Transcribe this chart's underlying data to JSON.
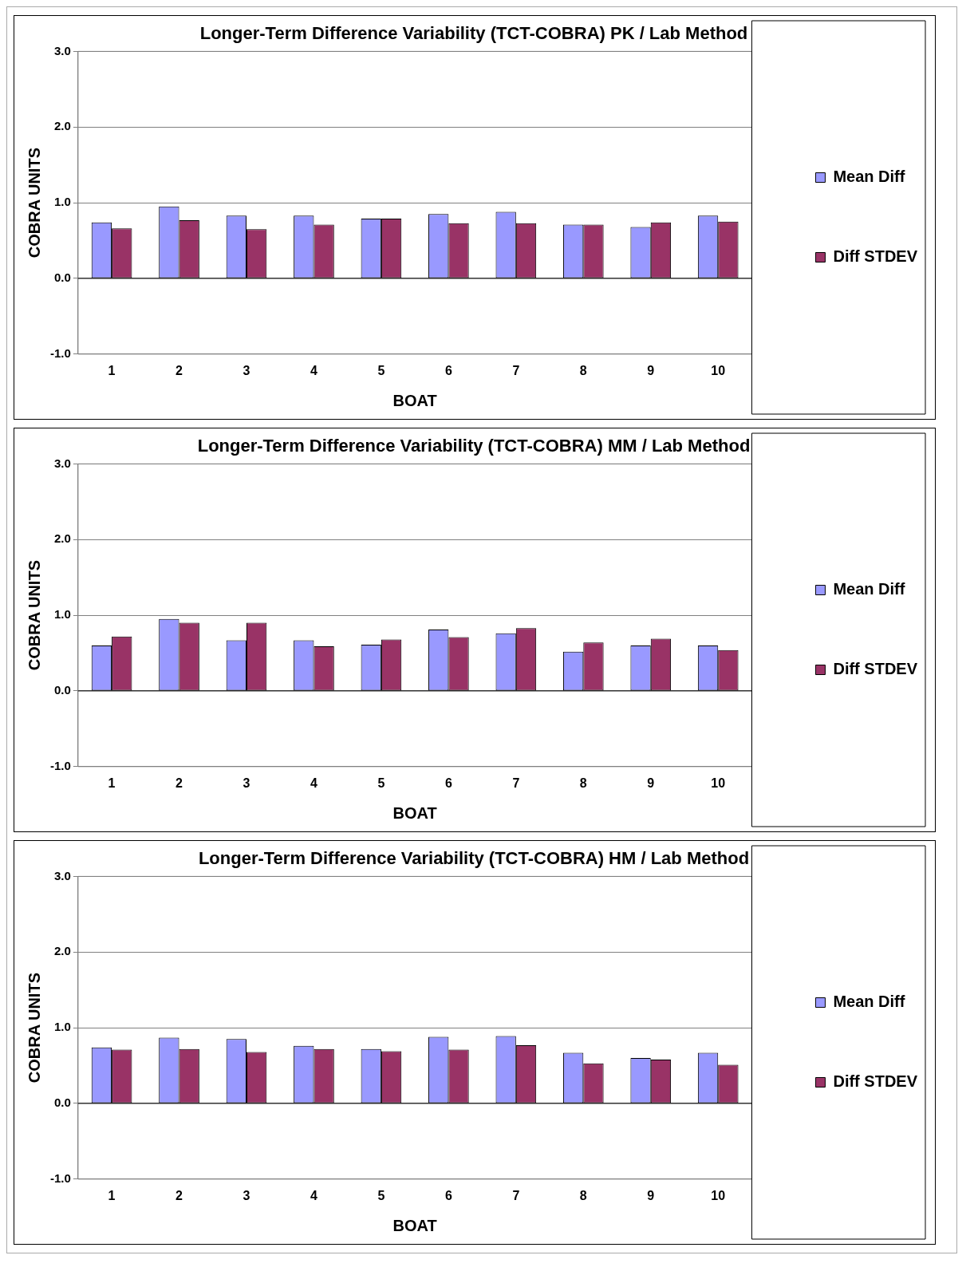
{
  "chart_data": [
    {
      "type": "bar",
      "title": "Longer-Term Difference Variability (TCT-COBRA) PK / Lab Method",
      "xlabel": "BOAT",
      "ylabel": "COBRA UNITS",
      "categories": [
        "1",
        "2",
        "3",
        "4",
        "5",
        "6",
        "7",
        "8",
        "9",
        "10"
      ],
      "series": [
        {
          "name": "Mean Diff",
          "color": "#9999ff",
          "values": [
            0.74,
            0.95,
            0.83,
            0.83,
            0.79,
            0.85,
            0.88,
            0.71,
            0.68,
            0.83
          ]
        },
        {
          "name": "Diff STDEV",
          "color": "#993366",
          "values": [
            0.66,
            0.77,
            0.65,
            0.71,
            0.79,
            0.73,
            0.73,
            0.71,
            0.74,
            0.75
          ]
        }
      ],
      "ylim": [
        -1,
        3
      ],
      "yticks": [
        {
          "value": -1,
          "label": "-1.0"
        },
        {
          "value": 0,
          "label": "0.0"
        },
        {
          "value": 1,
          "label": "1.0"
        },
        {
          "value": 2,
          "label": "2.0"
        },
        {
          "value": 3,
          "label": "3.0"
        }
      ],
      "grid": "y",
      "legend": "right"
    },
    {
      "type": "bar",
      "title": "Longer-Term Difference Variability (TCT-COBRA) MM / Lab Method",
      "xlabel": "BOAT",
      "ylabel": "COBRA UNITS",
      "categories": [
        "1",
        "2",
        "3",
        "4",
        "5",
        "6",
        "7",
        "8",
        "9",
        "10"
      ],
      "series": [
        {
          "name": "Mean Diff",
          "color": "#9999ff",
          "values": [
            0.6,
            0.95,
            0.67,
            0.67,
            0.61,
            0.81,
            0.76,
            0.52,
            0.6,
            0.6
          ]
        },
        {
          "name": "Diff STDEV",
          "color": "#993366",
          "values": [
            0.72,
            0.9,
            0.9,
            0.59,
            0.68,
            0.71,
            0.83,
            0.64,
            0.69,
            0.54
          ]
        }
      ],
      "ylim": [
        -1,
        3
      ],
      "yticks": [
        {
          "value": -1,
          "label": "-1.0"
        },
        {
          "value": 0,
          "label": "0.0"
        },
        {
          "value": 1,
          "label": "1.0"
        },
        {
          "value": 2,
          "label": "2.0"
        },
        {
          "value": 3,
          "label": "3.0"
        }
      ],
      "grid": "y",
      "legend": "right"
    },
    {
      "type": "bar",
      "title": "Longer-Term Difference Variability (TCT-COBRA) HM / Lab Method",
      "xlabel": "BOAT",
      "ylabel": "COBRA UNITS",
      "categories": [
        "1",
        "2",
        "3",
        "4",
        "5",
        "6",
        "7",
        "8",
        "9",
        "10"
      ],
      "series": [
        {
          "name": "Mean Diff",
          "color": "#9999ff",
          "values": [
            0.74,
            0.87,
            0.85,
            0.76,
            0.72,
            0.88,
            0.89,
            0.67,
            0.6,
            0.67
          ]
        },
        {
          "name": "Diff STDEV",
          "color": "#993366",
          "values": [
            0.71,
            0.72,
            0.68,
            0.72,
            0.69,
            0.71,
            0.77,
            0.53,
            0.58,
            0.51
          ]
        }
      ],
      "ylim": [
        -1,
        3
      ],
      "yticks": [
        {
          "value": -1,
          "label": "-1.0"
        },
        {
          "value": 0,
          "label": "0.0"
        },
        {
          "value": 1,
          "label": "1.0"
        },
        {
          "value": 2,
          "label": "2.0"
        },
        {
          "value": 3,
          "label": "3.0"
        }
      ],
      "grid": "y",
      "legend": "right"
    }
  ]
}
